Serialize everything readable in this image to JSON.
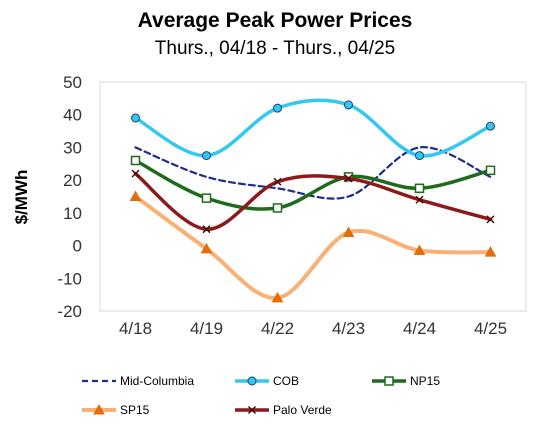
{
  "chart_data": {
    "type": "line",
    "title": "Average Peak Power Prices",
    "subtitle": "Thurs., 04/18 - Thurs., 04/25",
    "xlabel": "",
    "ylabel": "$/MWh",
    "categories": [
      "4/18",
      "4/19",
      "4/22",
      "4/23",
      "4/24",
      "4/25"
    ],
    "ylim": [
      -20,
      50
    ],
    "yticks": [
      -20,
      -10,
      0,
      10,
      20,
      30,
      40,
      50
    ],
    "grid": false,
    "legend_position": "bottom",
    "series": [
      {
        "name": "Mid-Columbia",
        "values": [
          30,
          21,
          17.5,
          15,
          30,
          21
        ],
        "color": "#1f2d8a",
        "line": "dashed",
        "marker": "none"
      },
      {
        "name": "COB",
        "values": [
          39,
          27.5,
          42,
          43,
          27.5,
          36.5
        ],
        "color": "#33c8f0",
        "line": "solid",
        "marker": "circle"
      },
      {
        "name": "NP15",
        "values": [
          26,
          14.5,
          11.5,
          21,
          17.5,
          23
        ],
        "color": "#1e6b1e",
        "line": "solid",
        "marker": "square"
      },
      {
        "name": "SP15",
        "values": [
          15,
          -1,
          -16,
          4,
          -1.5,
          -2
        ],
        "color": "#f79646",
        "line": "light",
        "marker": "triangle"
      },
      {
        "name": "Palo Verde",
        "values": [
          22,
          5,
          19.5,
          20.5,
          14,
          8
        ],
        "color": "#8b1a1a",
        "line": "solid",
        "marker": "x"
      }
    ]
  }
}
